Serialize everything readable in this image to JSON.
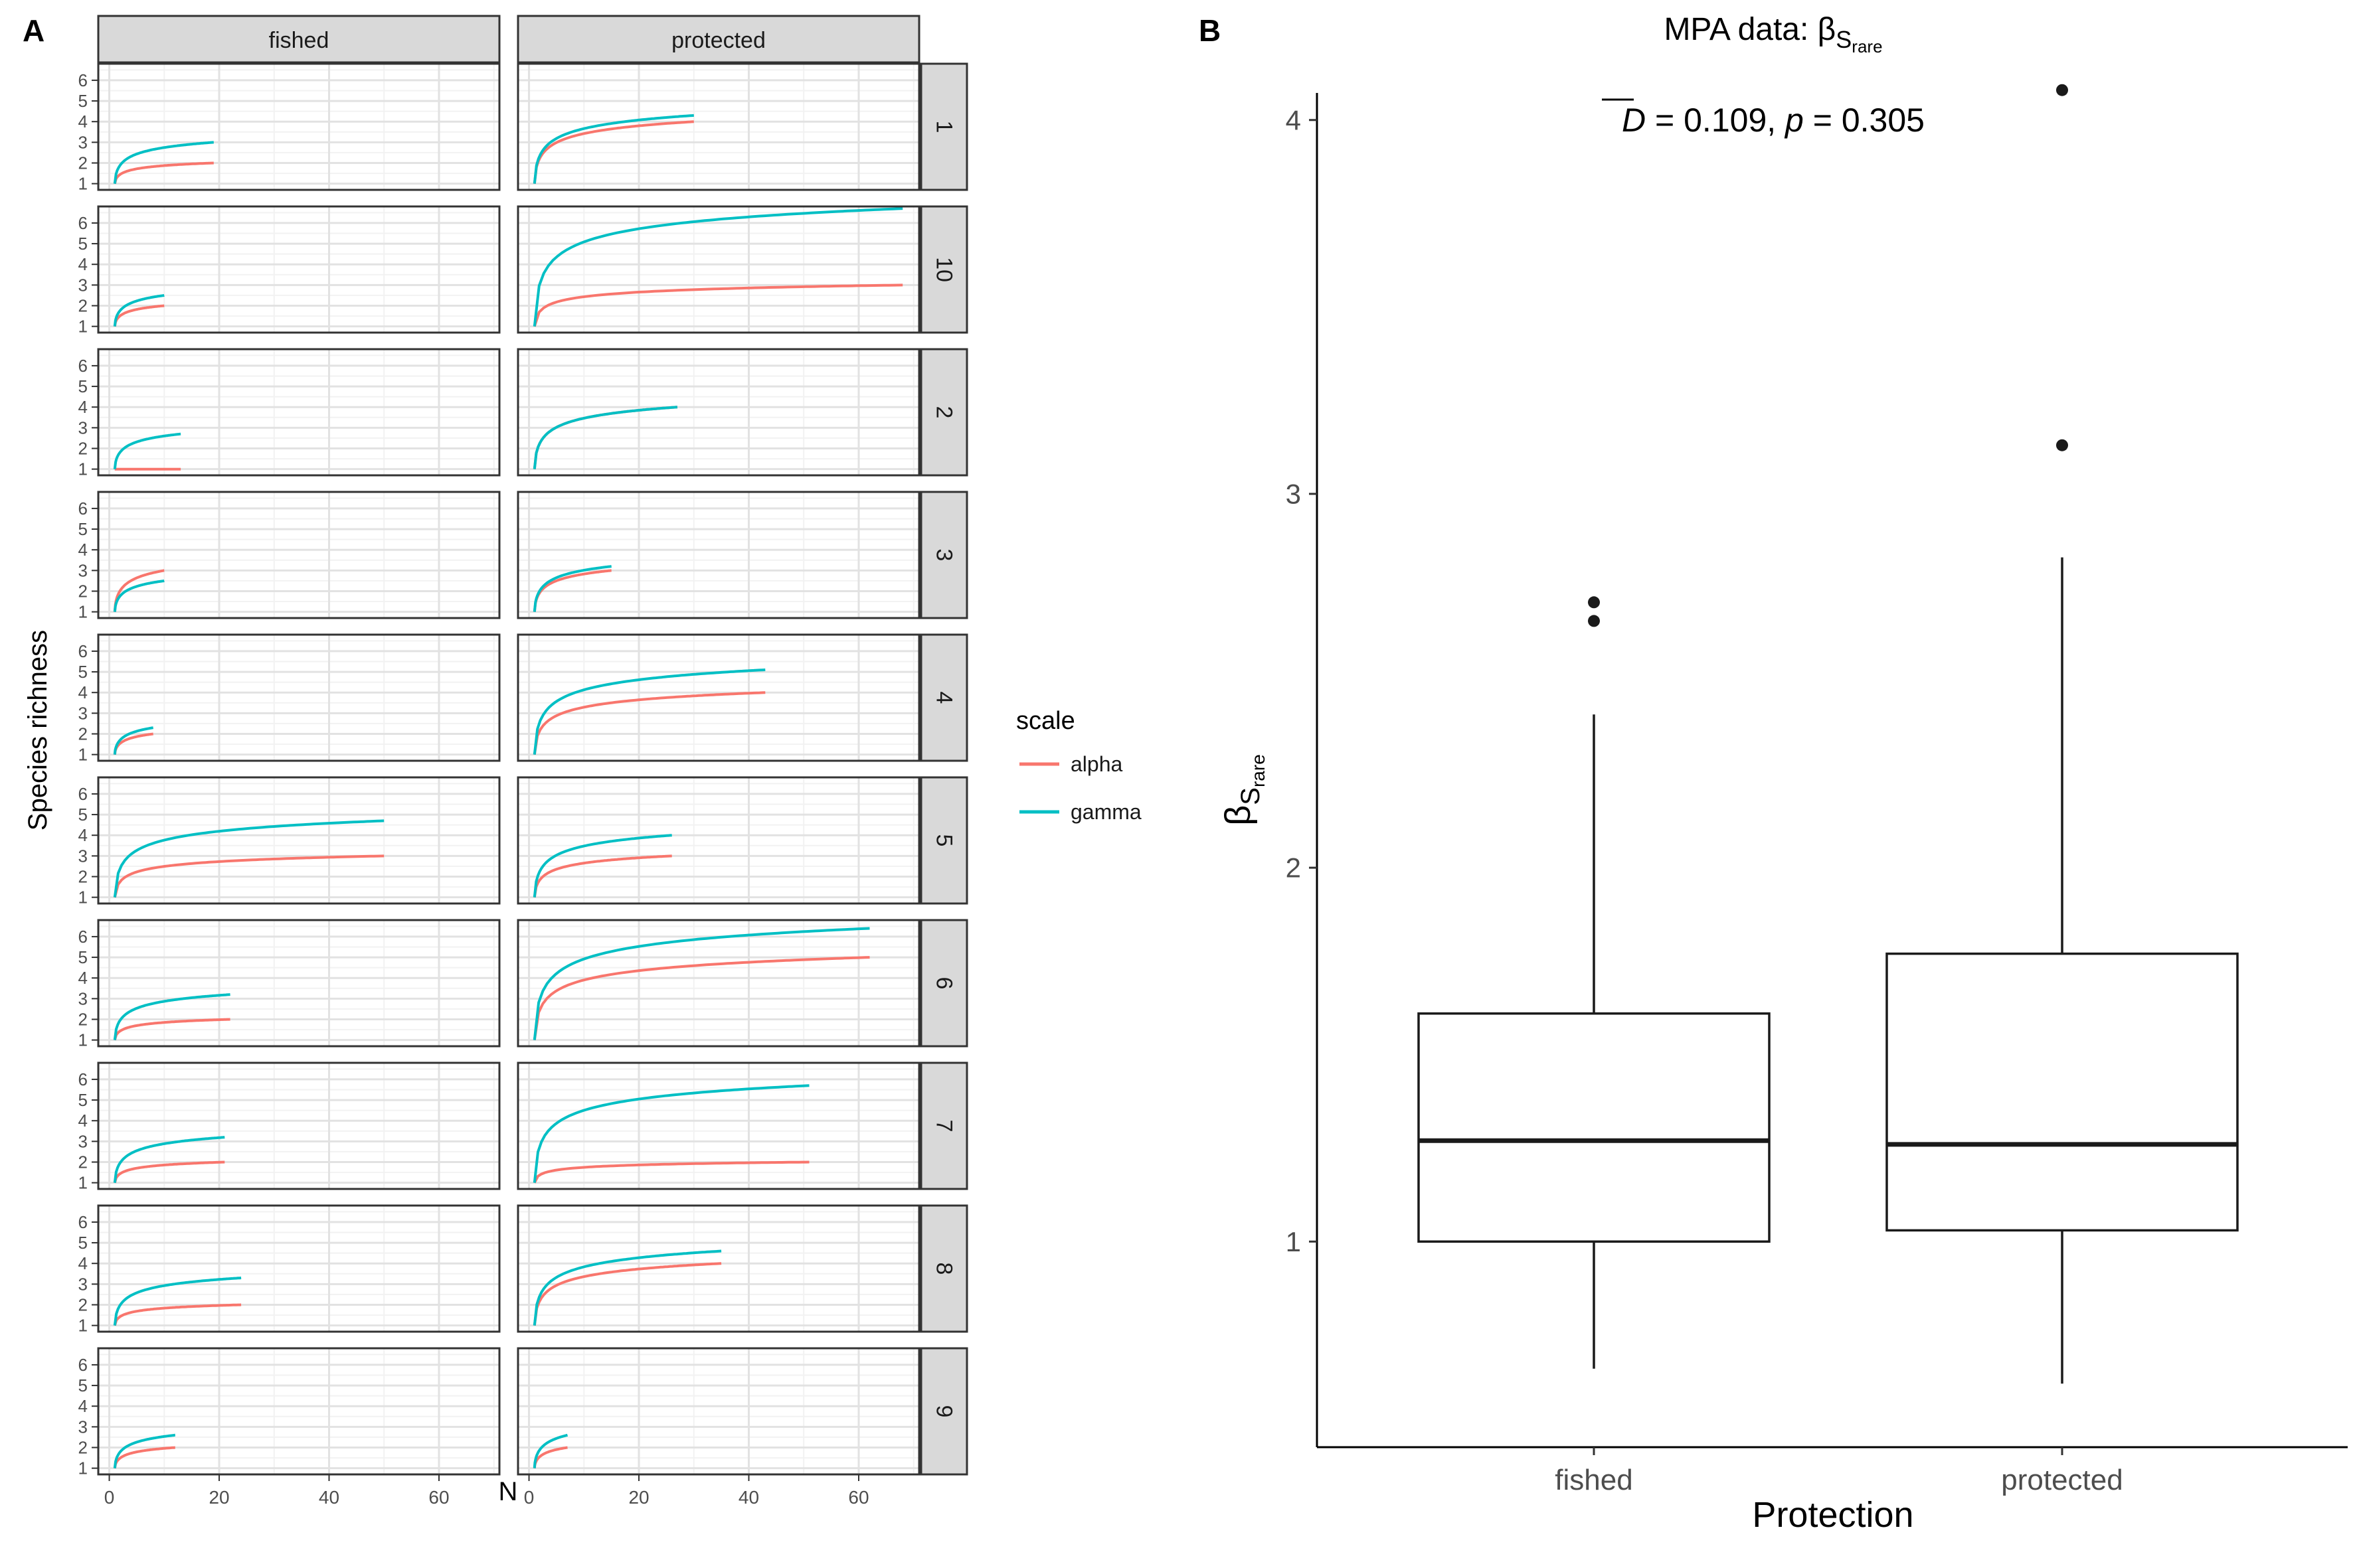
{
  "chart_data": [
    {
      "panel_label": "A",
      "type": "line",
      "xlabel": "N",
      "ylabel": "Species richness",
      "x_ticks": [
        0,
        20,
        40,
        60
      ],
      "y_ticks": [
        1,
        2,
        3,
        4,
        5,
        6
      ],
      "xlim": [
        -2,
        71
      ],
      "ylim": [
        0.7,
        6.8
      ],
      "grid": true,
      "legend": {
        "title": "scale",
        "position": "right",
        "entries": [
          {
            "name": "alpha",
            "color": "#F8766D"
          },
          {
            "name": "gamma",
            "color": "#00BFC4"
          }
        ]
      },
      "columns": [
        "fished",
        "protected"
      ],
      "rows": [
        "1",
        "10",
        "2",
        "3",
        "4",
        "5",
        "6",
        "7",
        "8",
        "9"
      ],
      "curves": [
        {
          "row": "1",
          "column": "fished",
          "alpha_end": [
            19,
            2.0
          ],
          "gamma_end": [
            19,
            3.0
          ]
        },
        {
          "row": "1",
          "column": "protected",
          "alpha_end": [
            30,
            4.0
          ],
          "gamma_end": [
            30,
            4.3
          ]
        },
        {
          "row": "10",
          "column": "fished",
          "alpha_end": [
            10,
            2.0
          ],
          "gamma_end": [
            10,
            2.5
          ]
        },
        {
          "row": "10",
          "column": "protected",
          "alpha_end": [
            68,
            3.0
          ],
          "gamma_end": [
            68,
            6.7
          ]
        },
        {
          "row": "2",
          "column": "fished",
          "alpha_end": [
            13,
            1.0
          ],
          "gamma_end": [
            13,
            2.7
          ]
        },
        {
          "row": "2",
          "column": "protected",
          "alpha_end": [
            27,
            4.0
          ],
          "gamma_end": [
            27,
            4.0
          ]
        },
        {
          "row": "3",
          "column": "fished",
          "alpha_end": [
            10,
            3.0
          ],
          "gamma_end": [
            10,
            2.5
          ]
        },
        {
          "row": "3",
          "column": "protected",
          "alpha_end": [
            15,
            3.0
          ],
          "gamma_end": [
            15,
            3.2
          ]
        },
        {
          "row": "4",
          "column": "fished",
          "alpha_end": [
            8,
            2.0
          ],
          "gamma_end": [
            8,
            2.3
          ]
        },
        {
          "row": "4",
          "column": "protected",
          "alpha_end": [
            43,
            4.0
          ],
          "gamma_end": [
            43,
            5.1
          ]
        },
        {
          "row": "5",
          "column": "fished",
          "alpha_end": [
            50,
            3.0
          ],
          "gamma_end": [
            50,
            4.7
          ]
        },
        {
          "row": "5",
          "column": "protected",
          "alpha_end": [
            26,
            3.0
          ],
          "gamma_end": [
            26,
            4.0
          ]
        },
        {
          "row": "6",
          "column": "fished",
          "alpha_end": [
            22,
            2.0
          ],
          "gamma_end": [
            22,
            3.2
          ]
        },
        {
          "row": "6",
          "column": "protected",
          "alpha_end": [
            62,
            5.0
          ],
          "gamma_end": [
            62,
            6.4
          ]
        },
        {
          "row": "7",
          "column": "fished",
          "alpha_end": [
            21,
            2.0
          ],
          "gamma_end": [
            21,
            3.2
          ]
        },
        {
          "row": "7",
          "column": "protected",
          "alpha_end": [
            51,
            2.0
          ],
          "gamma_end": [
            51,
            5.7
          ]
        },
        {
          "row": "8",
          "column": "fished",
          "alpha_end": [
            24,
            2.0
          ],
          "gamma_end": [
            24,
            3.3
          ]
        },
        {
          "row": "8",
          "column": "protected",
          "alpha_end": [
            35,
            4.0
          ],
          "gamma_end": [
            35,
            4.6
          ]
        },
        {
          "row": "9",
          "column": "fished",
          "alpha_end": [
            12,
            2.0
          ],
          "gamma_end": [
            12,
            2.6
          ]
        },
        {
          "row": "9",
          "column": "protected",
          "alpha_end": [
            7,
            2.0
          ],
          "gamma_end": [
            7,
            2.6
          ]
        }
      ]
    },
    {
      "panel_label": "B",
      "type": "box",
      "title": "MPA data: β",
      "title_subscript": "S",
      "title_subsubscript": "rare",
      "annotation_d": "D",
      "annotation_rest": " = 0.109, ",
      "annotation_p": "p",
      "annotation_p_rest": " = 0.305",
      "ylabel": "β",
      "ylabel_subscript": "S",
      "ylabel_subsubscript": "rare",
      "xlabel": "Protection",
      "categories": [
        "fished",
        "protected"
      ],
      "y_ticks": [
        1,
        2,
        3,
        4
      ],
      "ylim": [
        0.45,
        4.25
      ],
      "boxes": [
        {
          "category": "fished",
          "lower_whisker": 0.66,
          "q1": 1.0,
          "median": 1.27,
          "q3": 1.61,
          "upper_whisker": 2.41,
          "outliers": [
            2.66,
            2.71
          ]
        },
        {
          "category": "protected",
          "lower_whisker": 0.62,
          "q1": 1.03,
          "median": 1.26,
          "q3": 1.77,
          "upper_whisker": 2.83,
          "outliers": [
            3.13,
            4.08
          ]
        }
      ]
    }
  ]
}
